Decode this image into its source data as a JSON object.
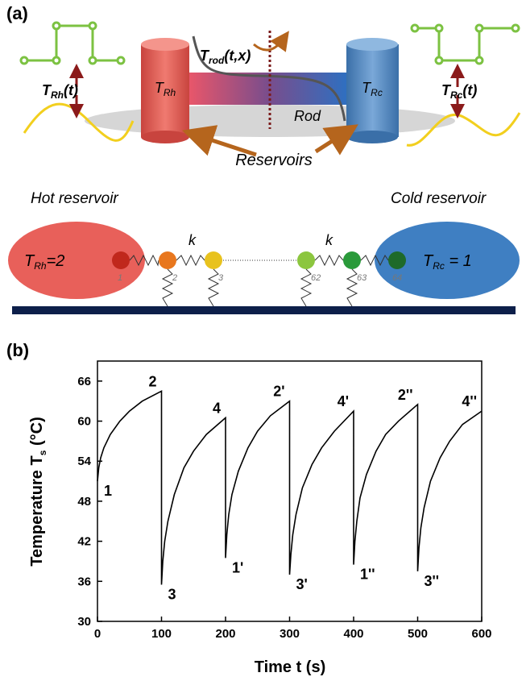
{
  "diagram": {
    "label": "(a)",
    "left_signal": [
      "T",
      "Rh",
      "(t)"
    ],
    "right_signal": [
      "T",
      "Rc",
      "(t)"
    ],
    "hot_cylinder": [
      "T",
      "Rh"
    ],
    "cold_cylinder": [
      "T",
      "Rc"
    ],
    "rod_temperature": [
      "T",
      "rod",
      "(t,x)"
    ],
    "rod": "Rod",
    "reservoirs": "Reservoirs",
    "hot_reservoir": "Hot reservoir",
    "cold_reservoir": "Cold reservoir",
    "coupling": [
      "k",
      "k"
    ],
    "hot_value": [
      "T",
      "Rh",
      "=2"
    ],
    "cold_value": [
      "T",
      "Rc",
      " = 1"
    ],
    "particles": [
      "1",
      "2",
      "3",
      "62",
      "63",
      "64"
    ]
  },
  "chart_data": {
    "type": "line",
    "label": "(b)",
    "xlabel": "Time t (s)",
    "ylabel": [
      "Temperature T",
      "s",
      " (°C)"
    ],
    "x": [
      0,
      2,
      5,
      10,
      20,
      35,
      50,
      70,
      100,
      100,
      102,
      105,
      110,
      120,
      135,
      150,
      170,
      200,
      200,
      202,
      205,
      210,
      220,
      235,
      250,
      270,
      300,
      300,
      302,
      305,
      310,
      320,
      335,
      350,
      370,
      400,
      400,
      402,
      405,
      410,
      420,
      435,
      450,
      470,
      500,
      500,
      502,
      505,
      510,
      520,
      535,
      550,
      570,
      600
    ],
    "series": [
      {
        "color": "#000000",
        "values": [
          51,
          53,
          54.5,
          56,
          58,
          60,
          61.5,
          63,
          64.5,
          35.5,
          39,
          42,
          45,
          49,
          53,
          55.5,
          58,
          60.5,
          39.5,
          43,
          46,
          49,
          52.5,
          56,
          58.5,
          60.8,
          63,
          37,
          40,
          43,
          46,
          50,
          53.5,
          56,
          58.5,
          61.5,
          38.5,
          42,
          45,
          48.5,
          52,
          55.5,
          58,
          60,
          62.5,
          37.5,
          41,
          44,
          47,
          51,
          54.5,
          57,
          59.5,
          61.5
        ]
      }
    ],
    "xlim": [
      0,
      600
    ],
    "xticks": [
      0,
      100,
      200,
      300,
      400,
      500,
      600
    ],
    "ylim": [
      30,
      69
    ],
    "yticks": [
      30,
      36,
      42,
      48,
      54,
      60,
      66
    ],
    "annotations": [
      {
        "text": "1",
        "x": 0,
        "y": 51
      },
      {
        "text": "2",
        "x": 100,
        "y": 64.5
      },
      {
        "text": "3",
        "x": 100,
        "y": 35.5
      },
      {
        "text": "4",
        "x": 200,
        "y": 60.5
      },
      {
        "text": "1'",
        "x": 200,
        "y": 39.5
      },
      {
        "text": "2'",
        "x": 300,
        "y": 63
      },
      {
        "text": "3'",
        "x": 300,
        "y": 37
      },
      {
        "text": "4'",
        "x": 400,
        "y": 61.5
      },
      {
        "text": "1''",
        "x": 400,
        "y": 38.5
      },
      {
        "text": "2''",
        "x": 500,
        "y": 62.5
      },
      {
        "text": "3''",
        "x": 500,
        "y": 37.5
      },
      {
        "text": "4''",
        "x": 600,
        "y": 61.5
      }
    ]
  }
}
